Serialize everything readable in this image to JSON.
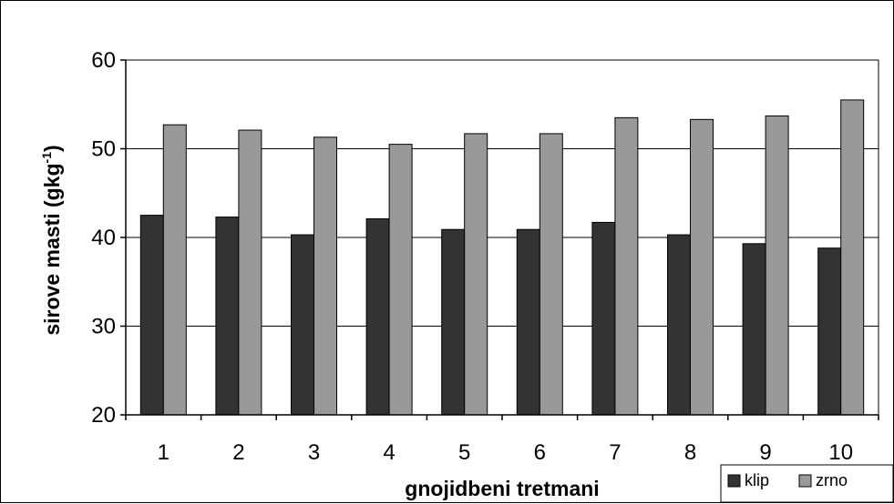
{
  "chart_data": {
    "type": "bar",
    "title": "",
    "xlabel": "gnojidbeni tretmani",
    "ylabel_main": "sirove masti (gkg",
    "ylabel_sup": "-1",
    "ylabel_close": ")",
    "categories": [
      "1",
      "2",
      "3",
      "4",
      "5",
      "6",
      "7",
      "8",
      "9",
      "10"
    ],
    "series": [
      {
        "name": "klip",
        "color": "#333333",
        "values": [
          42.5,
          42.3,
          40.3,
          42.1,
          40.9,
          40.9,
          41.7,
          40.3,
          39.3,
          38.8
        ]
      },
      {
        "name": "zrno",
        "color": "#999999",
        "values": [
          52.7,
          52.1,
          51.3,
          50.5,
          51.7,
          51.7,
          53.5,
          53.3,
          53.7,
          55.5
        ]
      }
    ],
    "ylim": [
      20,
      60
    ],
    "yticks": [
      20,
      30,
      40,
      50,
      60
    ],
    "grid": true,
    "legend_position": "bottom-right"
  }
}
